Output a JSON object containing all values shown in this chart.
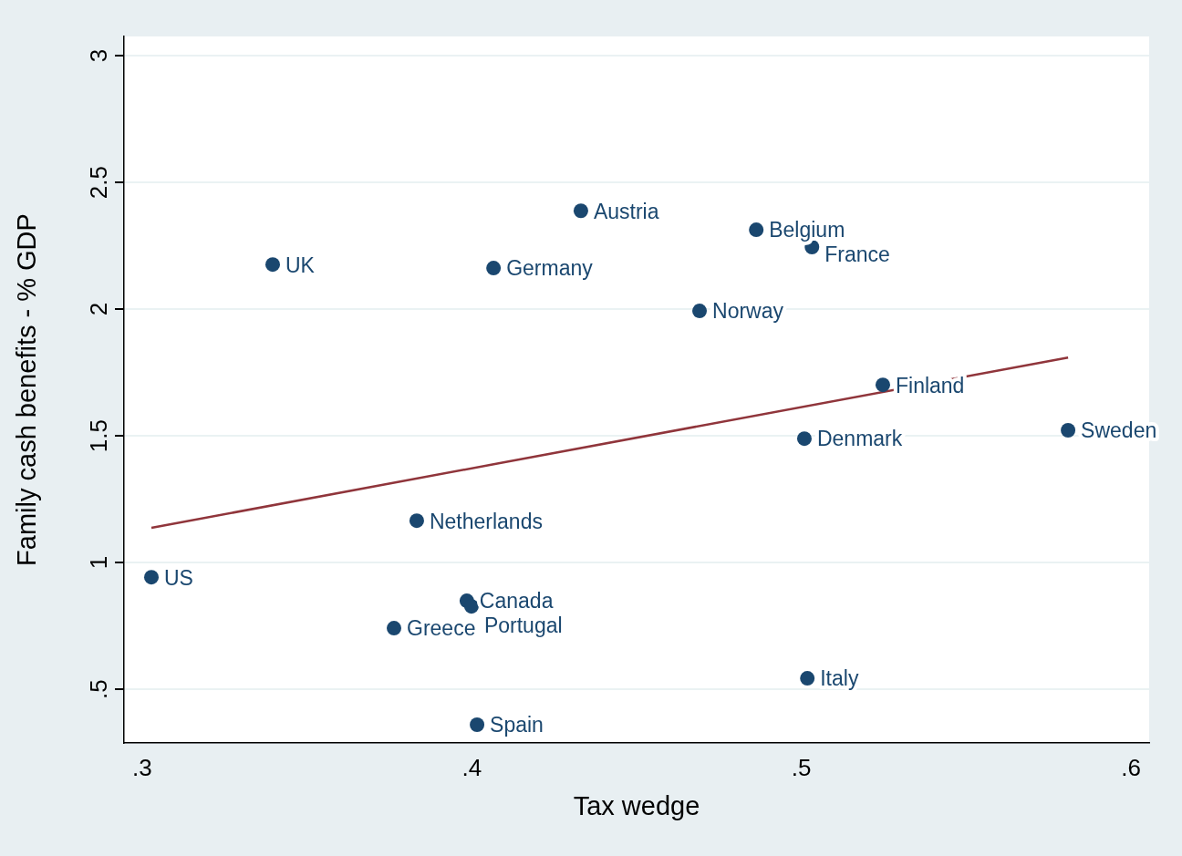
{
  "chart_data": {
    "type": "scatter",
    "xlabel": "Tax wedge",
    "ylabel": "Family cash benefits - % GDP",
    "xlim": [
      0.2945,
      0.6055
    ],
    "ylim": [
      0.288,
      3.076
    ],
    "xticks": [
      {
        "value": 0.3,
        "label": ".3"
      },
      {
        "value": 0.4,
        "label": ".4"
      },
      {
        "value": 0.5,
        "label": ".5"
      },
      {
        "value": 0.6,
        "label": ".6"
      }
    ],
    "yticks": [
      {
        "value": 0.5,
        "label": ".5"
      },
      1,
      1.5,
      2,
      2.5,
      3
    ],
    "grid": "y",
    "legend": false,
    "marker": "circle",
    "series": [
      {
        "color": "#1a476f",
        "x": [
          0.3028,
          0.3396,
          0.4331,
          0.4066,
          0.4863,
          0.5032,
          0.4691,
          0.5247,
          0.5809,
          0.5009,
          0.3833,
          0.3985,
          0.3999,
          0.3764,
          0.5018,
          0.4016
        ],
        "values": [
          0.942,
          2.176,
          2.388,
          2.162,
          2.313,
          2.245,
          1.993,
          1.701,
          1.522,
          1.489,
          1.165,
          0.849,
          0.827,
          0.741,
          0.543,
          0.36
        ],
        "value_labels": [
          "US",
          "UK",
          "Austria",
          "Germany",
          "Belgium",
          "France",
          "Norway",
          "Finland",
          "Sweden",
          "Denmark",
          "Netherlands",
          "Canada",
          "Portugal",
          "Greece",
          "Italy",
          "Spain"
        ]
      },
      {
        "type": "line",
        "color": "#90353b",
        "x": [
          0.3028,
          0.5809
        ],
        "values": [
          1.137,
          1.809
        ],
        "marker": "none"
      }
    ]
  }
}
